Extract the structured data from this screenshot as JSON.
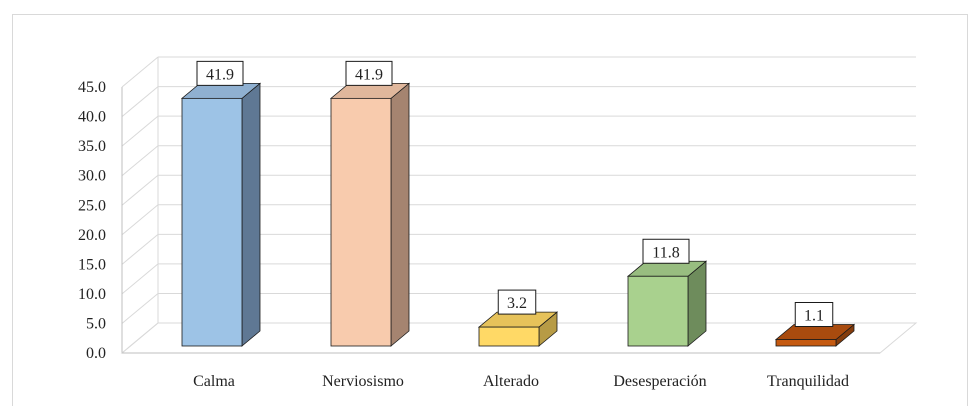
{
  "chart_data": {
    "type": "bar",
    "categories": [
      "Calma",
      "Nerviosismo",
      "Alterado",
      "Desesperación",
      "Tranquilidad"
    ],
    "values": [
      41.9,
      41.9,
      3.2,
      11.8,
      1.1
    ],
    "data_labels": [
      "41.9",
      "41.9",
      "3.2",
      "11.8",
      "1.1"
    ],
    "y_ticks": [
      "0.0",
      "5.0",
      "10.0",
      "15.0",
      "20.0",
      "25.0",
      "30.0",
      "35.0",
      "40.0",
      "45.0"
    ],
    "ylim": [
      0,
      45
    ],
    "grid": true,
    "style": "3d-column",
    "colors": {
      "front": [
        "#9dc3e6",
        "#f8cbad",
        "#ffd966",
        "#a9d18e",
        "#c55a11"
      ],
      "side": [
        "#5f7894",
        "#a58470",
        "#b79b45",
        "#6e8c5c",
        "#843c0c"
      ],
      "top": [
        "#8fb0d1",
        "#e0b79c",
        "#e6c25a",
        "#98bd80",
        "#a94b0e"
      ],
      "grid": "#d9d9d9",
      "axis": "#bfbfbf"
    }
  }
}
